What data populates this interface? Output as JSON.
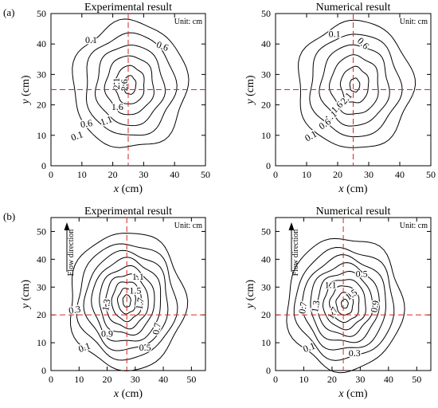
{
  "chart_data": [
    {
      "type": "contour",
      "panel_label": "(a)",
      "title": "Experimental result",
      "unit_note": "Unit: cm",
      "xlabel_var": "x",
      "xlabel_unit": "(cm)",
      "ylabel_var": "y",
      "ylabel_unit": "(cm)",
      "xlim": [
        0,
        50
      ],
      "ylim": [
        0,
        50
      ],
      "xticks": [
        0,
        10,
        20,
        30,
        40,
        50
      ],
      "yticks": [
        0,
        10,
        20,
        30,
        40,
        50
      ],
      "crosshair": {
        "x": 25,
        "y": 25
      },
      "center": [
        25.5,
        26.5
      ],
      "contours": [
        {
          "level": "0.1",
          "rx": 18.5,
          "ry": 20.5
        },
        {
          "level": "0.6",
          "rx": 14.5,
          "ry": 16.5
        },
        {
          "level": "1.1",
          "rx": 11.0,
          "ry": 13.0
        },
        {
          "level": "1.6",
          "rx": 7.8,
          "ry": 9.5
        },
        {
          "level": "2.1",
          "rx": 4.8,
          "ry": 6.2
        },
        {
          "level": "2.6",
          "rx": 2.0,
          "ry": 3.0
        }
      ],
      "contour_labels": [
        {
          "text": "0.1",
          "x": 13,
          "y": 41,
          "rot": 0
        },
        {
          "text": "0.6",
          "x": 36,
          "y": 39,
          "rot": 20
        },
        {
          "text": "2.1",
          "x": 21.5,
          "y": 27,
          "rot": -90
        },
        {
          "text": "2.6",
          "x": 24,
          "y": 26.5,
          "rot": -90
        },
        {
          "text": "1.6",
          "x": 21.5,
          "y": 19,
          "rot": 0
        },
        {
          "text": "1.1",
          "x": 18,
          "y": 14.5,
          "rot": -20
        },
        {
          "text": "0.6",
          "x": 11.5,
          "y": 13.5,
          "rot": -10
        },
        {
          "text": "0.1",
          "x": 8.5,
          "y": 9.5,
          "rot": -20
        }
      ]
    },
    {
      "type": "contour",
      "panel_label": "",
      "title": "Numerical result",
      "unit_note": "Unit: cm",
      "xlabel_var": "x",
      "xlabel_unit": "(cm)",
      "ylabel_var": "y",
      "ylabel_unit": "(cm)",
      "xlim": [
        0,
        50
      ],
      "ylim": [
        0,
        50
      ],
      "xticks": [
        0,
        10,
        20,
        30,
        40,
        50
      ],
      "yticks": [
        0,
        10,
        20,
        30,
        40,
        50
      ],
      "crosshair": {
        "x": 25,
        "y": 25
      },
      "center": [
        25.5,
        26.5
      ],
      "contours": [
        {
          "level": "0.1",
          "rx": 18.5,
          "ry": 20.5
        },
        {
          "level": "0.6",
          "rx": 14.5,
          "ry": 16.5
        },
        {
          "level": "1.1",
          "rx": 11.0,
          "ry": 13.0
        },
        {
          "level": "1.6",
          "rx": 7.8,
          "ry": 9.5
        },
        {
          "level": "2.1",
          "rx": 4.5,
          "ry": 5.8
        },
        {
          "level": "2.6",
          "rx": 1.6,
          "ry": 2.2
        }
      ],
      "contour_labels": [
        {
          "text": "0.1",
          "x": 19,
          "y": 43,
          "rot": 0
        },
        {
          "text": "0.6",
          "x": 28,
          "y": 40,
          "rot": 45
        },
        {
          "text": "2.1",
          "x": 23,
          "y": 22,
          "rot": -50
        },
        {
          "text": "1.6",
          "x": 20,
          "y": 19,
          "rot": -45
        },
        {
          "text": "1.1",
          "x": 18,
          "y": 16,
          "rot": -40
        },
        {
          "text": "0.6",
          "x": 16,
          "y": 13.5,
          "rot": -35
        },
        {
          "text": "0.1",
          "x": 11.5,
          "y": 9.5,
          "rot": -30
        }
      ]
    },
    {
      "type": "contour",
      "panel_label": "(b)",
      "title": "Experimental result",
      "unit_note": "Unit: cm",
      "flow_label": "Flow direction",
      "xlabel_var": "x",
      "xlabel_unit": "(cm)",
      "ylabel_var": "y",
      "ylabel_unit": "(cm)",
      "xlim": [
        0,
        55
      ],
      "ylim": [
        0,
        55
      ],
      "xticks": [
        0,
        10,
        20,
        30,
        40,
        50
      ],
      "yticks": [
        0,
        10,
        20,
        30,
        40,
        50
      ],
      "crosshair": {
        "x": 27,
        "y": 20
      },
      "center": [
        27,
        25
      ],
      "contours": [
        {
          "level": "0.1",
          "rx": 20.5,
          "ry": 24.5
        },
        {
          "level": "0.3",
          "rx": 17.5,
          "ry": 20.5
        },
        {
          "level": "0.5",
          "rx": 14.8,
          "ry": 17.5
        },
        {
          "level": "0.7",
          "rx": 12.3,
          "ry": 14.8
        },
        {
          "level": "0.9",
          "rx": 9.8,
          "ry": 12.0
        },
        {
          "level": "1.1",
          "rx": 7.6,
          "ry": 9.5
        },
        {
          "level": "1.3",
          "rx": 5.3,
          "ry": 7.0
        },
        {
          "level": "1.5",
          "rx": 3.2,
          "ry": 4.5
        },
        {
          "level": "1.7",
          "rx": 1.4,
          "ry": 2.2
        }
      ],
      "contour_labels": [
        {
          "text": "1.1",
          "x": 31,
          "y": 33.5,
          "rot": 0
        },
        {
          "text": "1.5",
          "x": 30,
          "y": 28.5,
          "rot": 0
        },
        {
          "text": "1.3",
          "x": 20,
          "y": 23.5,
          "rot": -80
        },
        {
          "text": "1.7",
          "x": 32,
          "y": 24,
          "rot": -80
        },
        {
          "text": "0.3",
          "x": 8.5,
          "y": 21.5,
          "rot": -10
        },
        {
          "text": "0.9",
          "x": 20,
          "y": 13,
          "rot": 0
        },
        {
          "text": "0.7",
          "x": 38,
          "y": 15,
          "rot": -80
        },
        {
          "text": "0.5",
          "x": 33.5,
          "y": 8,
          "rot": 0
        },
        {
          "text": "0.1",
          "x": 12,
          "y": 8,
          "rot": -20
        }
      ]
    },
    {
      "type": "contour",
      "panel_label": "",
      "title": "Numerical result",
      "unit_note": "Unit: cm",
      "flow_label": "Flow direction",
      "xlabel_var": "x",
      "xlabel_unit": "(cm)",
      "ylabel_var": "y",
      "ylabel_unit": "(cm)",
      "xlim": [
        0,
        55
      ],
      "ylim": [
        0,
        55
      ],
      "xticks": [
        0,
        10,
        20,
        30,
        40,
        50
      ],
      "yticks": [
        0,
        10,
        20,
        30,
        40,
        50
      ],
      "crosshair": {
        "x": 24,
        "y": 20
      },
      "center": [
        24.5,
        24
      ],
      "contours": [
        {
          "level": "0.1",
          "rx": 20.5,
          "ry": 23.5
        },
        {
          "level": "0.3",
          "rx": 17.5,
          "ry": 19.5
        },
        {
          "level": "0.5",
          "rx": 14.8,
          "ry": 16.5
        },
        {
          "level": "0.7",
          "rx": 12.2,
          "ry": 13.8
        },
        {
          "level": "0.9",
          "rx": 9.8,
          "ry": 11.2
        },
        {
          "level": "1.1",
          "rx": 7.5,
          "ry": 8.8
        },
        {
          "level": "1.3",
          "rx": 5.2,
          "ry": 6.4
        },
        {
          "level": "1.5",
          "rx": 3.0,
          "ry": 4.0
        },
        {
          "level": "1.7",
          "rx": 1.2,
          "ry": 1.6
        }
      ],
      "contour_labels": [
        {
          "text": "0.5",
          "x": 30.5,
          "y": 34.5,
          "rot": 0
        },
        {
          "text": "1.1",
          "x": 19.5,
          "y": 30.5,
          "rot": 0
        },
        {
          "text": "1.5",
          "x": 27,
          "y": 27,
          "rot": -35
        },
        {
          "text": "1.3",
          "x": 14.5,
          "y": 23,
          "rot": -80
        },
        {
          "text": "0.7",
          "x": 10,
          "y": 22.5,
          "rot": -80
        },
        {
          "text": "1.7",
          "x": 20.5,
          "y": 20.5,
          "rot": -60
        },
        {
          "text": "0.9",
          "x": 35.5,
          "y": 23,
          "rot": -80
        },
        {
          "text": "0.3",
          "x": 28,
          "y": 6,
          "rot": 0
        },
        {
          "text": "0.1",
          "x": 12,
          "y": 8,
          "rot": -20
        }
      ]
    }
  ]
}
